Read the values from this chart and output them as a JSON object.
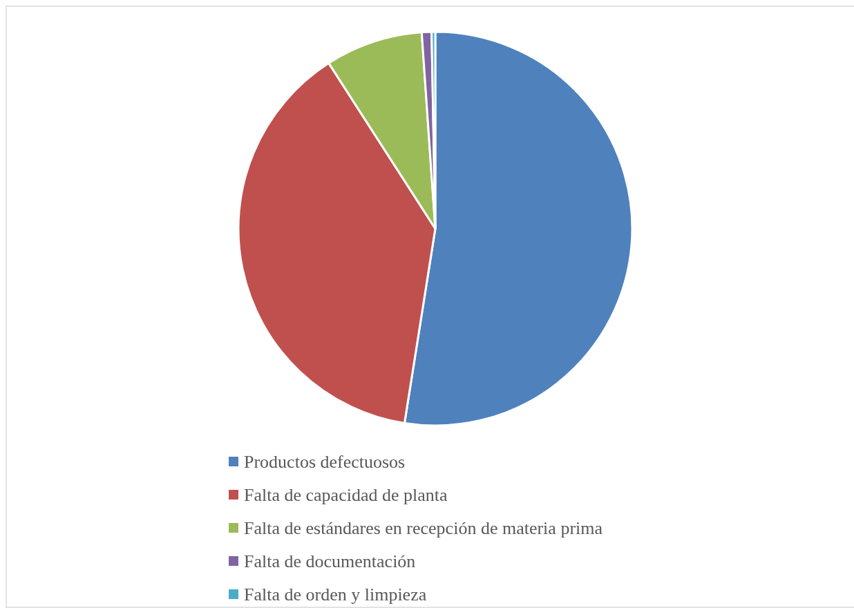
{
  "chart_data": {
    "type": "pie",
    "categories": [
      "Productos defectuosos",
      "Falta de capacidad de planta",
      "Falta de estándares en recepción de materia prima",
      "Falta de documentación",
      "Falta de orden y limpieza"
    ],
    "values": [
      52.5,
      38.4,
      8.0,
      0.8,
      0.3
    ],
    "colors": [
      "#4f81bd",
      "#c0504d",
      "#9bbb59",
      "#8064a2",
      "#4bacc6"
    ],
    "legend": "bottom"
  }
}
